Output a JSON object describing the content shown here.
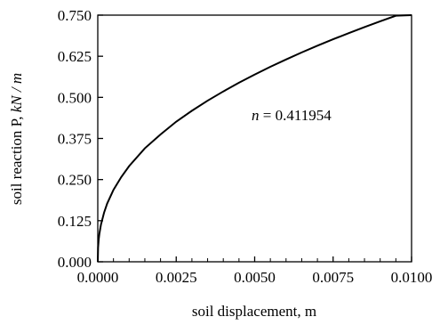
{
  "chart_data": {
    "type": "line",
    "xlabel": "soil displacement, m",
    "ylabel_prefix": "soil reaction P, ",
    "ylabel_unit": "kN / m",
    "xlim": [
      0,
      0.01
    ],
    "ylim": [
      0,
      0.75
    ],
    "x_ticks": [
      "0.0000",
      "0.0025",
      "0.0050",
      "0.0075",
      "0.0100"
    ],
    "y_ticks": [
      "0.000",
      "0.125",
      "0.250",
      "0.375",
      "0.500",
      "0.625",
      "0.750"
    ],
    "annotation": {
      "var": "n",
      "text": " = 0.411954"
    },
    "series": [
      {
        "values": [
          [
            0.0,
            0.0
          ],
          [
            1e-05,
            0.0436
          ],
          [
            3e-05,
            0.0686
          ],
          [
            5e-05,
            0.0844
          ],
          [
            0.0001,
            0.1122
          ],
          [
            0.0002,
            0.1493
          ],
          [
            0.0003,
            0.1772
          ],
          [
            0.0005,
            0.2187
          ],
          [
            0.00075,
            0.2578
          ],
          [
            0.001,
            0.291
          ],
          [
            0.0015,
            0.3451
          ],
          [
            0.002,
            0.3873
          ],
          [
            0.0025,
            0.4261
          ],
          [
            0.003,
            0.4593
          ],
          [
            0.0035,
            0.4899
          ],
          [
            0.004,
            0.518
          ],
          [
            0.0045,
            0.5446
          ],
          [
            0.005,
            0.5693
          ],
          [
            0.0055,
            0.593
          ],
          [
            0.006,
            0.6152
          ],
          [
            0.0065,
            0.6367
          ],
          [
            0.007,
            0.6571
          ],
          [
            0.0075,
            0.6766
          ],
          [
            0.008,
            0.6954
          ],
          [
            0.0085,
            0.7136
          ],
          [
            0.009,
            0.7312
          ],
          [
            0.0095,
            0.7482
          ],
          [
            0.01,
            0.75
          ]
        ]
      }
    ],
    "grid": false,
    "legend": "none"
  },
  "colors": {
    "line": "#000000",
    "axes": "#000000",
    "background": "#ffffff"
  }
}
